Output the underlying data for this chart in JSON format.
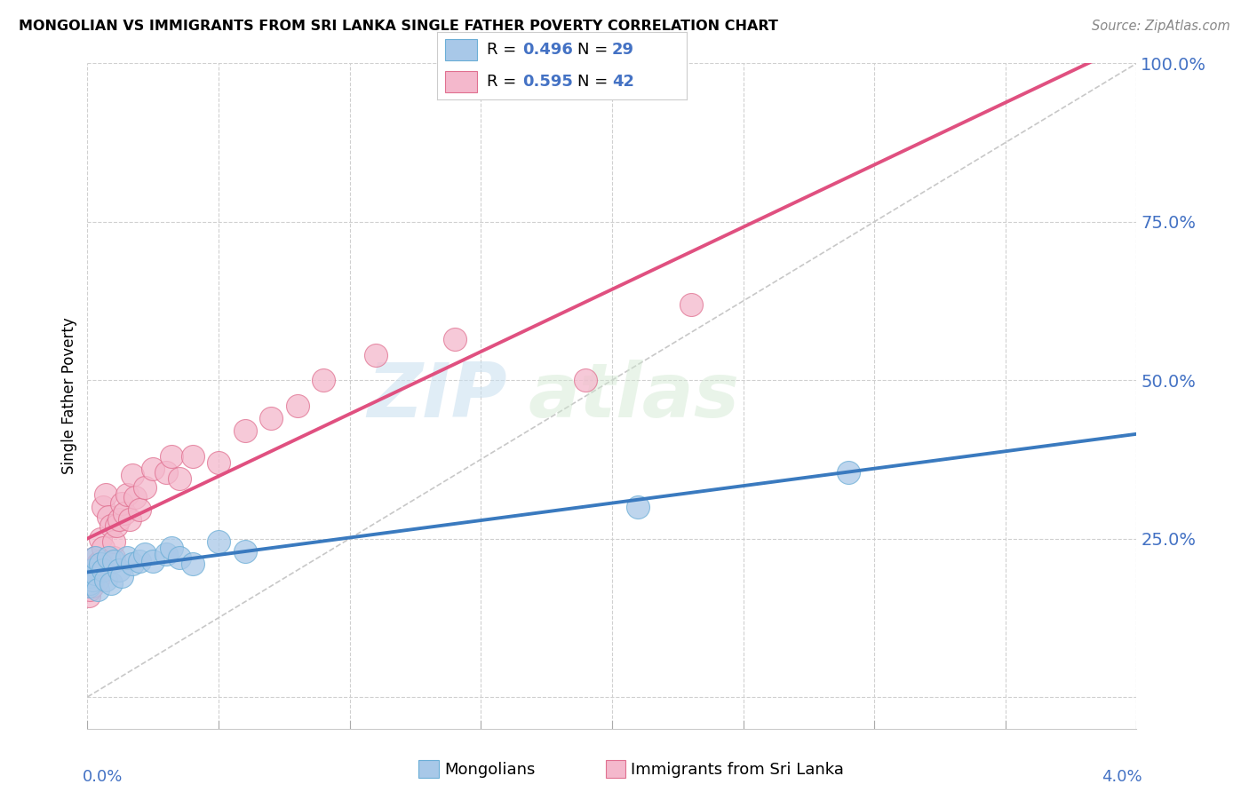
{
  "title": "MONGOLIAN VS IMMIGRANTS FROM SRI LANKA SINGLE FATHER POVERTY CORRELATION CHART",
  "source": "Source: ZipAtlas.com",
  "ylabel": "Single Father Poverty",
  "mongolian_color": "#a8c8e8",
  "mongolian_edge_color": "#6baed6",
  "srilanka_color": "#f4b8cc",
  "srilanka_edge_color": "#e07090",
  "mongolian_line_color": "#3a7abf",
  "srilanka_line_color": "#e05080",
  "diagonal_color": "#c8c8c8",
  "background_color": "#ffffff",
  "watermark_zip": "ZIP",
  "watermark_atlas": "atlas",
  "mongolian_R": 0.496,
  "mongolian_N": 29,
  "srilanka_R": 0.595,
  "srilanka_N": 42,
  "xlim": [
    0.0,
    0.04
  ],
  "ylim": [
    -0.05,
    1.0
  ],
  "ytick_color": "#4472c4",
  "legend_border_color": "#cccccc",
  "grid_color": "#d0d0d0"
}
